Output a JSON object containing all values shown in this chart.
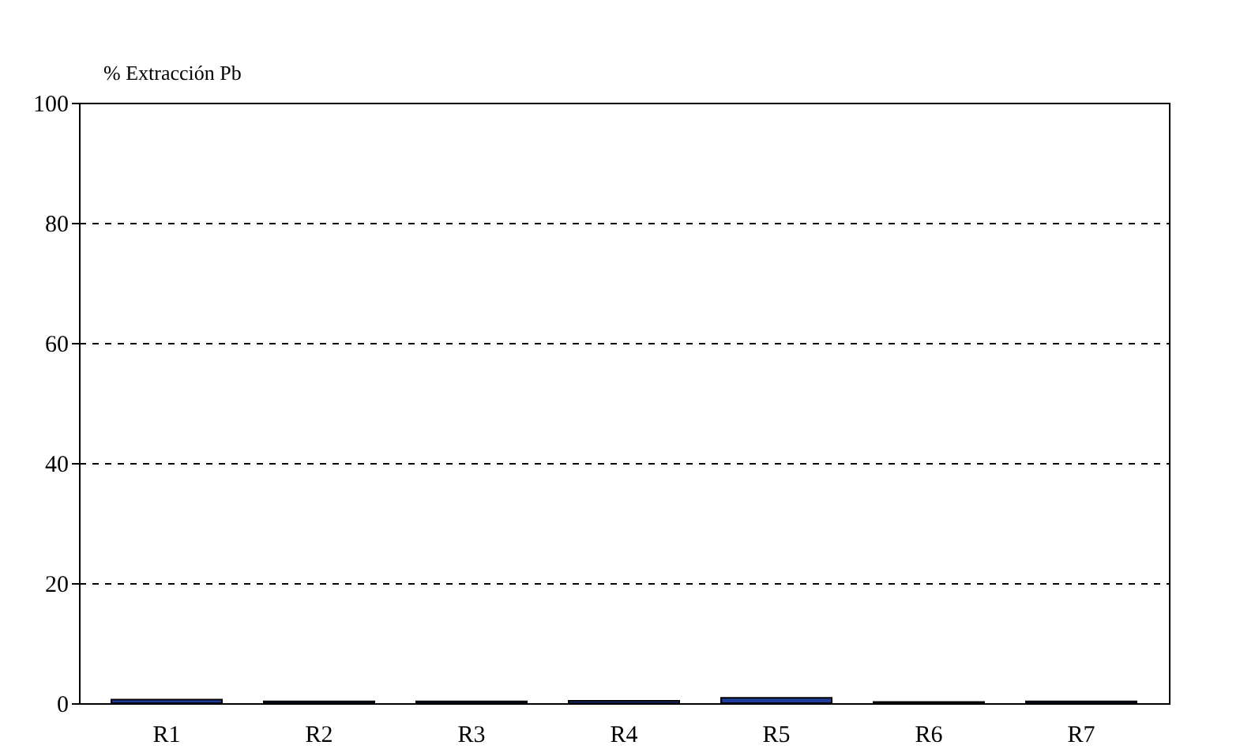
{
  "chart_data": {
    "type": "bar",
    "ylabel": "% Extracción Pb",
    "categories": [
      "R1",
      "R2",
      "R3",
      "R4",
      "R5",
      "R6",
      "R7"
    ],
    "values": [
      0.6,
      0.3,
      0.3,
      0.4,
      0.9,
      0.2,
      0.3
    ],
    "color": "#1f3d9c",
    "ylim": [
      0,
      100
    ],
    "yticks": [
      0,
      20,
      40,
      60,
      80,
      100
    ],
    "grid": "y",
    "line_style": "dashed"
  }
}
